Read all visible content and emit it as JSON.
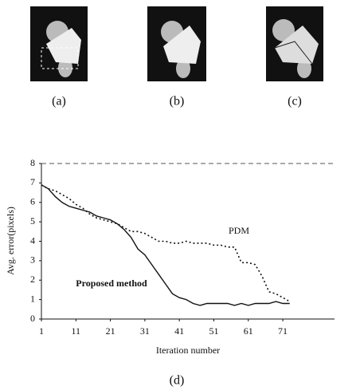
{
  "panels": [
    {
      "label": "(a)"
    },
    {
      "label": "(b)"
    },
    {
      "label": "(c)"
    }
  ],
  "chart_data": {
    "type": "line",
    "label": "(d)",
    "xlabel": "Iteration number",
    "ylabel": "Avg. error(pixels)",
    "x": [
      1,
      3,
      5,
      7,
      9,
      11,
      13,
      15,
      17,
      19,
      21,
      23,
      25,
      27,
      29,
      31,
      33,
      35,
      37,
      39,
      41,
      43,
      45,
      47,
      49,
      51,
      53,
      55,
      57,
      59,
      61,
      63,
      65,
      67,
      69,
      71,
      73
    ],
    "series": [
      {
        "name": "Proposed method",
        "color": "#111111",
        "dash": "solid",
        "values": [
          6.9,
          6.7,
          6.3,
          6.0,
          5.8,
          5.7,
          5.6,
          5.5,
          5.3,
          5.2,
          5.1,
          4.9,
          4.6,
          4.2,
          3.6,
          3.3,
          2.8,
          2.3,
          1.8,
          1.3,
          1.1,
          1.0,
          0.8,
          0.7,
          0.8,
          0.8,
          0.8,
          0.8,
          0.7,
          0.8,
          0.7,
          0.8,
          0.8,
          0.8,
          0.9,
          0.8,
          0.8
        ]
      },
      {
        "name": "PDM",
        "color": "#111111",
        "dash": "dotted",
        "values": [
          6.9,
          6.7,
          6.6,
          6.4,
          6.2,
          5.9,
          5.7,
          5.4,
          5.2,
          5.1,
          5.0,
          4.9,
          4.7,
          4.5,
          4.5,
          4.4,
          4.2,
          4.0,
          4.0,
          3.9,
          3.9,
          4.0,
          3.9,
          3.9,
          3.9,
          3.8,
          3.8,
          3.7,
          3.7,
          2.9,
          2.9,
          2.8,
          2.2,
          1.4,
          1.3,
          1.1,
          0.9
        ]
      }
    ],
    "xlim": [
      1,
      86
    ],
    "xticks": [
      1,
      11,
      21,
      31,
      41,
      51,
      61,
      71
    ],
    "ylim": [
      0,
      8
    ],
    "yticks": [
      0,
      1,
      2,
      3,
      4,
      5,
      6,
      7,
      8
    ]
  }
}
